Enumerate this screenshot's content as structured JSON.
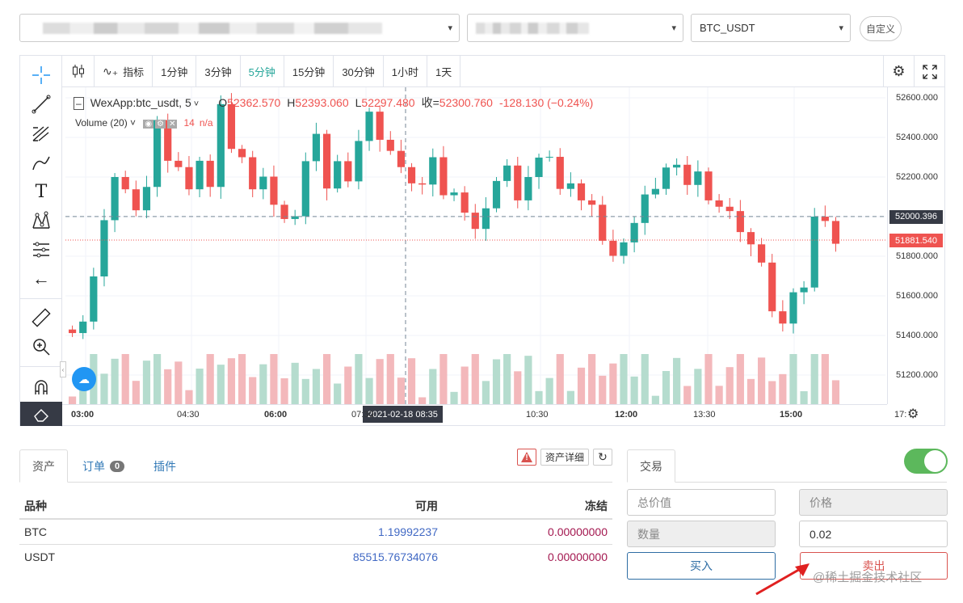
{
  "header": {
    "select1_caret": "▾",
    "select2_caret": "▾",
    "pair_select": "BTC_USDT",
    "custom_button": "自定义"
  },
  "chart": {
    "toolbar": {
      "indicator_label": "指标",
      "intervals": [
        "1分钟",
        "3分钟",
        "5分钟",
        "15分钟",
        "30分钟",
        "1小时",
        "1天"
      ],
      "active_interval": "5分钟"
    },
    "legend": {
      "symbol": "WexApp:btc_usdt, 5",
      "open_label": "O",
      "open": "52362.570",
      "high_label": "H",
      "high": "52393.060",
      "low_label": "L",
      "low": "52297.480",
      "close_label": "收=",
      "close": "52300.760",
      "change": "-128.130 (−0.24%)",
      "volume_label": "Volume (20)",
      "volume_value": "14",
      "volume_na": "n/a"
    },
    "price_axis": [
      "52600.000",
      "52400.000",
      "52200.000",
      "52000.000",
      "51800.000",
      "51600.000",
      "51400.000",
      "51200.000"
    ],
    "crosshair_price": "52000.396",
    "last_price": "51881.540",
    "time_axis": [
      {
        "t": "03:00",
        "bold": true
      },
      {
        "t": "04:30",
        "bold": false
      },
      {
        "t": "06:00",
        "bold": true
      },
      {
        "t": "07:30",
        "bold": false
      },
      {
        "t": "10:30",
        "bold": false
      },
      {
        "t": "12:00",
        "bold": true
      },
      {
        "t": "13:30",
        "bold": false
      },
      {
        "t": "15:00",
        "bold": true
      },
      {
        "t": "17:",
        "bold": false
      }
    ],
    "crosshair_time": "2021-02-18   08:35",
    "colors": {
      "up": "#26a69a",
      "down": "#ef5350",
      "up_vol": "#b5dcce",
      "down_vol": "#f3b8bb"
    }
  },
  "assets": {
    "tabs": {
      "assets": "资产",
      "orders": "订单",
      "orders_count": "0",
      "plugins": "插件"
    },
    "warning_icon": "!",
    "detail_button": "资产详细",
    "refresh_icon": "↻",
    "columns": [
      "品种",
      "可用",
      "冻结"
    ],
    "rows": [
      {
        "symbol": "BTC",
        "available": "1.19992237",
        "frozen": "0.00000000"
      },
      {
        "symbol": "USDT",
        "available": "85515.76734076",
        "frozen": "0.00000000"
      }
    ]
  },
  "trade": {
    "tab": "交易",
    "total_placeholder": "总价值",
    "price_placeholder": "价格",
    "qty_placeholder": "数量",
    "amount_value": "0.02",
    "buy_label": "买入",
    "sell_label": "卖出",
    "toggle_on": true
  },
  "watermark": "@稀土掘金技术社区"
}
